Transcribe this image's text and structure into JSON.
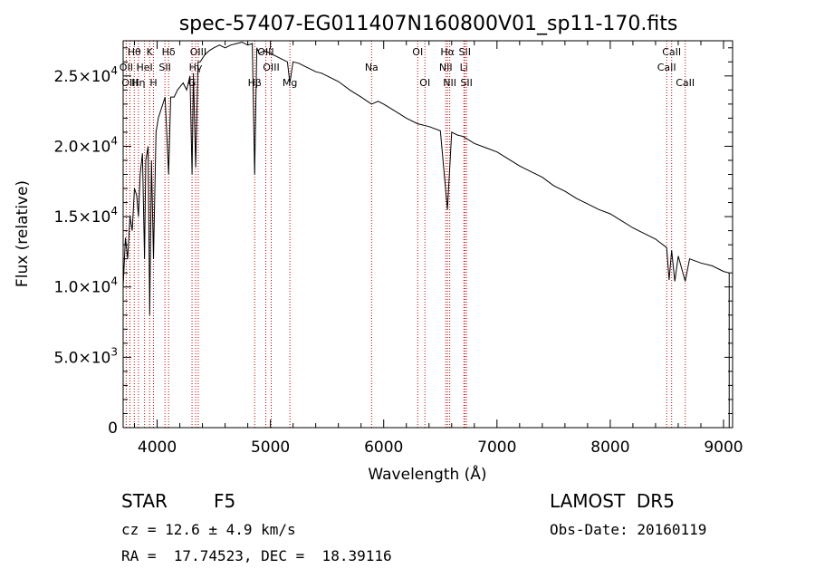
{
  "chart_data": {
    "type": "line",
    "title": "spec-57407-EG011407N160800V01_sp11-170.fits",
    "xlabel": "Wavelength (Å)",
    "ylabel": "Flux (relative)",
    "xlim": [
      3700,
      9080
    ],
    "ylim": [
      0,
      27500
    ],
    "x_ticks": [
      4000,
      5000,
      6000,
      7000,
      8000,
      9000
    ],
    "x_tick_labels": [
      "4000",
      "5000",
      "6000",
      "7000",
      "8000",
      "9000"
    ],
    "y_ticks": [
      0,
      5000,
      10000,
      15000,
      20000,
      25000
    ],
    "y_tick_labels": [
      {
        "m": "0",
        "e": ""
      },
      {
        "m": "5.0×10",
        "e": "3"
      },
      {
        "m": "1.0×10",
        "e": "4"
      },
      {
        "m": "1.5×10",
        "e": "4"
      },
      {
        "m": "2.0×10",
        "e": "4"
      },
      {
        "m": "2.5×10",
        "e": "4"
      }
    ],
    "grid": false,
    "series": [
      {
        "x": [
          3700,
          3720,
          3740,
          3760,
          3780,
          3800,
          3820,
          3835,
          3850,
          3870,
          3889,
          3900,
          3920,
          3934,
          3950,
          3968,
          3990,
          4010,
          4030,
          4050,
          4070,
          4101,
          4120,
          4150,
          4180,
          4200,
          4230,
          4260,
          4290,
          4308,
          4320,
          4340,
          4361,
          4380,
          4420,
          4460,
          4500,
          4550,
          4600,
          4650,
          4700,
          4750,
          4800,
          4840,
          4861,
          4880,
          4900,
          4950,
          5000,
          5050,
          5100,
          5150,
          5172,
          5200,
          5250,
          5300,
          5350,
          5400,
          5450,
          5500,
          5600,
          5700,
          5800,
          5893,
          5950,
          6000,
          6100,
          6200,
          6300,
          6400,
          6500,
          6563,
          6600,
          6650,
          6700,
          6800,
          6900,
          7000,
          7100,
          7200,
          7300,
          7400,
          7500,
          7600,
          7700,
          7800,
          7900,
          8000,
          8100,
          8200,
          8300,
          8400,
          8498,
          8520,
          8542,
          8570,
          8600,
          8662,
          8700,
          8800,
          8900,
          9000,
          9050
        ],
        "y": [
          10000,
          13500,
          12000,
          15000,
          14000,
          17000,
          16500,
          15000,
          18000,
          19500,
          12000,
          19000,
          20000,
          8000,
          19000,
          12000,
          21000,
          22000,
          22500,
          23000,
          23500,
          18000,
          23500,
          23500,
          24000,
          24200,
          24500,
          24000,
          25000,
          18000,
          25200,
          18500,
          26000,
          26000,
          26500,
          26800,
          27000,
          27200,
          27000,
          27200,
          27300,
          27400,
          27200,
          27300,
          18000,
          27000,
          26600,
          26800,
          26600,
          26400,
          26200,
          26000,
          24500,
          26000,
          25900,
          25700,
          25500,
          25300,
          25200,
          25000,
          24600,
          24000,
          23500,
          23000,
          23200,
          23000,
          22500,
          22000,
          21600,
          21400,
          21100,
          15500,
          21000,
          20800,
          20700,
          20200,
          19900,
          19600,
          19100,
          18600,
          18200,
          17800,
          17200,
          16800,
          16300,
          15900,
          15500,
          15200,
          14700,
          14200,
          13800,
          13400,
          12800,
          10500,
          12600,
          10400,
          12200,
          10400,
          12000,
          11700,
          11500,
          11100,
          11000
        ]
      }
    ],
    "lines": [
      {
        "label": "Hθ",
        "x": 3798,
        "row": 0
      },
      {
        "label": "OII",
        "x": 3727,
        "row": 1
      },
      {
        "label": "OIII",
        "x": 3760,
        "row": 2
      },
      {
        "label": "Hη",
        "x": 3835,
        "row": 2
      },
      {
        "label": "HeI",
        "x": 3889,
        "row": 1
      },
      {
        "label": "K",
        "x": 3934,
        "row": 0
      },
      {
        "label": "H",
        "x": 3968,
        "row": 2
      },
      {
        "label": "SII",
        "x": 4069,
        "row": 1
      },
      {
        "label": "Hδ",
        "x": 4101,
        "row": 0
      },
      {
        "label": "OIII",
        "x": 4363,
        "row": 0
      },
      {
        "label": "Hγ",
        "x": 4340,
        "row": 1
      },
      {
        "label": "G",
        "x": 4308,
        "row": 2
      },
      {
        "label": "Hβ",
        "x": 4861,
        "row": 2
      },
      {
        "label": "OIII",
        "x": 4959,
        "row": 0
      },
      {
        "label": "OIII",
        "x": 5007,
        "row": 1
      },
      {
        "label": "Mg",
        "x": 5172,
        "row": 2
      },
      {
        "label": "Na",
        "x": 5893,
        "row": 1
      },
      {
        "label": "OI",
        "x": 6300,
        "row": 0
      },
      {
        "label": "OI",
        "x": 6364,
        "row": 2
      },
      {
        "label": "NII",
        "x": 6548,
        "row": 1
      },
      {
        "label": "Hα",
        "x": 6563,
        "row": 0
      },
      {
        "label": "NII",
        "x": 6583,
        "row": 2
      },
      {
        "label": "Li",
        "x": 6708,
        "row": 1
      },
      {
        "label": "SII",
        "x": 6716,
        "row": 0
      },
      {
        "label": "SII",
        "x": 6731,
        "row": 2
      },
      {
        "label": "CaII",
        "x": 8498,
        "row": 1
      },
      {
        "label": "CaII",
        "x": 8542,
        "row": 0
      },
      {
        "label": "CaII",
        "x": 8662,
        "row": 2
      }
    ]
  },
  "info": {
    "class_label": "STAR",
    "subclass": "F5",
    "survey": "LAMOST  DR5",
    "cz": "cz = 12.6 ± 4.9 km/s",
    "obs_date": "Obs-Date: 20160119",
    "coords": "RA =  17.74523, DEC =  18.39116"
  },
  "colors": {
    "spectrum": "#000000",
    "line_markers": "#c00000"
  }
}
